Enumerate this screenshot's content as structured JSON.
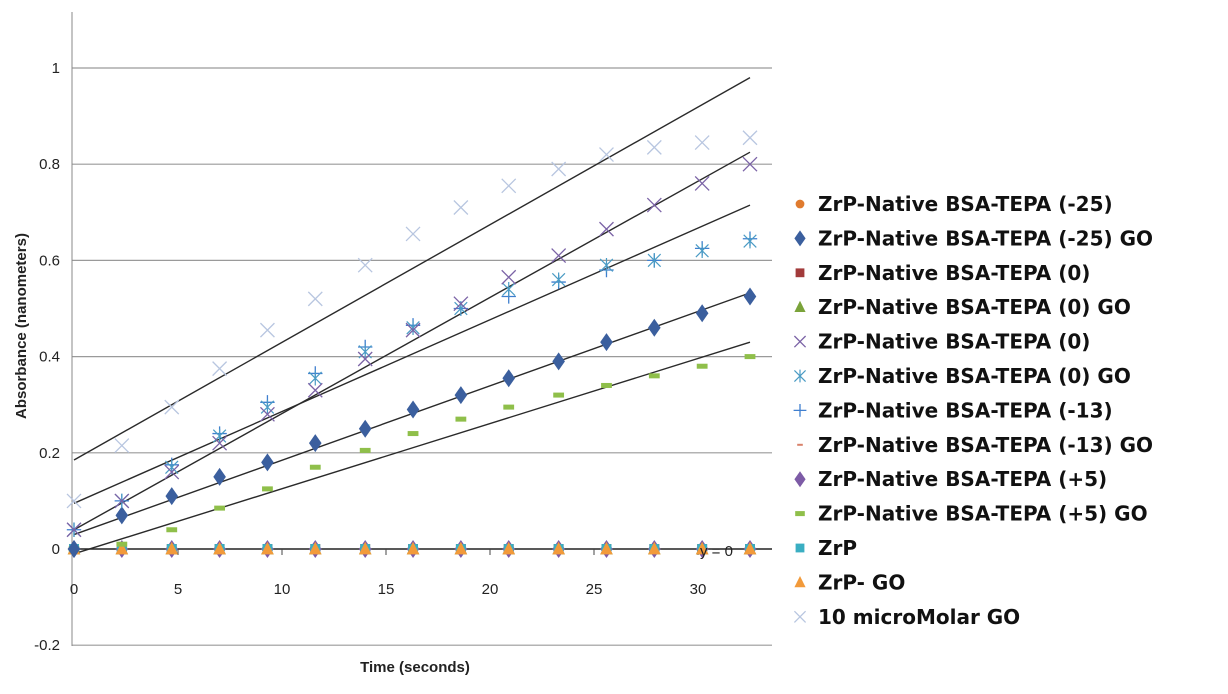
{
  "chart_data": {
    "type": "scatter",
    "title": "",
    "xlabel": "Time (seconds)",
    "ylabel": "Absorbance  (nanometers)",
    "xlim": [
      0,
      33
    ],
    "ylim": [
      -0.2,
      1.1
    ],
    "x_ticks": [
      0,
      5,
      10,
      15,
      20,
      25,
      30
    ],
    "x_tick_labels": [
      "0",
      "5",
      "10",
      "15",
      "20",
      "25",
      "30"
    ],
    "y_ticks": [
      -0.2,
      0,
      0.2,
      0.4,
      0.6,
      0.8,
      1
    ],
    "y_tick_labels": [
      "-0.2",
      "0",
      "0.2",
      "0.4",
      "0.6",
      "0.8",
      "1"
    ],
    "grid": "horizontal",
    "legend_position": "right",
    "annotation": "y = 0",
    "x": [
      0,
      2.3,
      4.7,
      7.0,
      9.3,
      11.6,
      14.0,
      16.3,
      18.6,
      20.9,
      23.3,
      25.6,
      27.9,
      30.2,
      32.5
    ],
    "series": [
      {
        "name": "ZrP-Native BSA-TEPA (-25)",
        "color": "#e07b2e",
        "marker": "circle",
        "values": [
          0,
          0,
          0,
          0,
          0,
          0,
          0,
          0,
          0,
          0,
          0,
          0,
          0,
          0,
          0
        ]
      },
      {
        "name": "ZrP-Native BSA-TEPA (-25) GO",
        "color": "#3b5f9e",
        "marker": "diamond",
        "values": [
          0,
          0.07,
          0.11,
          0.15,
          0.18,
          0.22,
          0.25,
          0.29,
          0.32,
          0.355,
          0.39,
          0.43,
          0.46,
          0.49,
          0.525
        ],
        "trendline": [
          0.03,
          0.5325
        ]
      },
      {
        "name": "ZrP-Native BSA-TEPA (0)",
        "color": "#a23b3b",
        "marker": "square",
        "values": [
          0,
          0,
          0,
          0,
          0,
          0,
          0,
          0,
          0,
          0,
          0,
          0,
          0,
          0,
          0
        ]
      },
      {
        "name": "ZrP-Native BSA-TEPA (0) GO",
        "color": "#7aa33a",
        "marker": "triangle",
        "values": [
          0,
          0,
          0,
          0,
          0,
          0,
          0,
          0,
          0,
          0,
          0,
          0,
          0,
          0,
          0
        ]
      },
      {
        "name": "ZrP-Native BSA-TEPA (0)",
        "color": "#7b63a6",
        "marker": "x",
        "values": [
          0.04,
          0.1,
          0.16,
          0.22,
          0.28,
          0.33,
          0.395,
          0.455,
          0.51,
          0.565,
          0.61,
          0.665,
          0.715,
          0.76,
          0.8
        ],
        "trendline": [
          0.04,
          0.825
        ]
      },
      {
        "name": "ZrP-Native BSA-TEPA (0) GO",
        "color": "#4a9bc4",
        "marker": "star",
        "values": [
          0.04,
          0.1,
          0.17,
          0.235,
          0.295,
          0.355,
          0.41,
          0.46,
          0.5,
          0.54,
          0.56,
          0.59,
          0.6,
          0.62,
          0.64
        ]
      },
      {
        "name": "ZrP-Native BSA-TEPA (-13)",
        "color": "#3f7fcf",
        "marker": "plus",
        "values": [
          0.04,
          0.1,
          0.175,
          0.24,
          0.305,
          0.365,
          0.42,
          0.465,
          0.5,
          0.525,
          0.555,
          0.58,
          0.6,
          0.625,
          0.645
        ],
        "trendline": [
          0.095,
          0.715
        ]
      },
      {
        "name": "ZrP-Native BSA-TEPA (-13) GO",
        "color": "#d9826a",
        "marker": "dash",
        "values": [
          0,
          0,
          0,
          0,
          0,
          0,
          0,
          0,
          0,
          0,
          0,
          0,
          0,
          0,
          0
        ]
      },
      {
        "name": "ZrP-Native BSA-TEPA (+5)",
        "color": "#7d5ba6",
        "marker": "diamond",
        "values": [
          0,
          0,
          0,
          0,
          0,
          0,
          0,
          0,
          0,
          0,
          0,
          0,
          0,
          0,
          0
        ]
      },
      {
        "name": "ZrP-Native BSA-TEPA (+5) GO",
        "color": "#8fbf4a",
        "marker": "bar",
        "values": [
          0,
          0.01,
          0.04,
          0.085,
          0.125,
          0.17,
          0.205,
          0.24,
          0.27,
          0.295,
          0.32,
          0.34,
          0.36,
          0.38,
          0.4
        ],
        "trendline": [
          -0.01,
          0.43
        ]
      },
      {
        "name": "ZrP",
        "color": "#3aaec2",
        "marker": "square",
        "values": [
          0,
          0,
          0,
          0,
          0,
          0,
          0,
          0,
          0,
          0,
          0,
          0,
          0,
          0,
          0
        ]
      },
      {
        "name": "ZrP- GO",
        "color": "#f29a3a",
        "marker": "triangle",
        "values": [
          0,
          0,
          0,
          0,
          0,
          0,
          0,
          0,
          0,
          0,
          0,
          0,
          0,
          0,
          0
        ]
      },
      {
        "name": "10 microMolar GO",
        "color": "#b8c6e0",
        "marker": "x",
        "values": [
          0.1,
          0.215,
          0.295,
          0.375,
          0.455,
          0.52,
          0.59,
          0.655,
          0.71,
          0.755,
          0.79,
          0.82,
          0.835,
          0.845,
          0.855
        ],
        "trendline": [
          0.185,
          0.98
        ]
      }
    ]
  }
}
